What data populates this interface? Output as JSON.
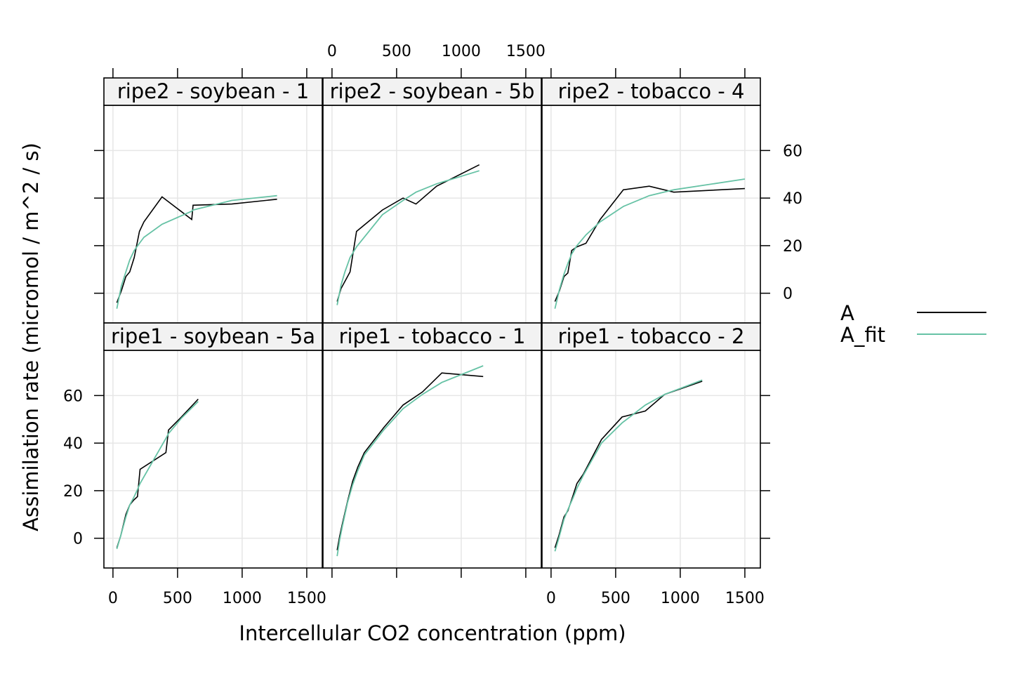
{
  "chart_data": {
    "type": "line",
    "layout": "lattice 3 columns x 2 rows",
    "xlabel": "Intercellular CO2 concentration (ppm)",
    "ylabel": "Assimilation rate (micromol / m^2 / s)",
    "xlim": [
      -70,
      1620
    ],
    "ylim": [
      -12.5,
      79
    ],
    "x_ticks": [
      0,
      500,
      1000,
      1500
    ],
    "x_tick_labels": [
      "0",
      "500",
      "1000",
      "1500"
    ],
    "y_ticks": [
      0,
      20,
      40,
      60
    ],
    "y_tick_labels": [
      "0",
      "20",
      "40",
      "60"
    ],
    "grid": true,
    "legend": {
      "position": "right",
      "entries": [
        {
          "label": "A",
          "color": "#000000"
        },
        {
          "label": "A_fit",
          "color": "#66C2A5"
        }
      ]
    },
    "panels": [
      {
        "label": "ripe2 - soybean - 1",
        "row": 0,
        "col": 0,
        "series": [
          {
            "name": "A",
            "x": [
              30,
              65,
              100,
              130,
              165,
              205,
              240,
              380,
              610,
              620,
              920,
              1270
            ],
            "y": [
              -4,
              1,
              7,
              9,
              15,
              26,
              30,
              40.5,
              31,
              37,
              37.5,
              39.5
            ]
          },
          {
            "name": "A_fit",
            "x": [
              30,
              65,
              100,
              130,
              165,
              205,
              240,
              380,
              610,
              620,
              920,
              1270
            ],
            "y": [
              -6.5,
              3,
              9,
              14,
              18,
              21,
              23.5,
              29,
              34.5,
              35,
              39,
              41
            ]
          }
        ]
      },
      {
        "label": "ripe2 - soybean - 5b",
        "row": 0,
        "col": 1,
        "series": [
          {
            "name": "A",
            "x": [
              40,
              70,
              100,
              140,
              190,
              390,
              550,
              650,
              810,
              1140
            ],
            "y": [
              -3.5,
              2,
              5,
              9,
              26,
              35,
              40,
              37.5,
              45,
              54
            ]
          },
          {
            "name": "A_fit",
            "x": [
              40,
              70,
              100,
              140,
              190,
              390,
              550,
              650,
              810,
              1140
            ],
            "y": [
              -5,
              3.5,
              9,
              15,
              19.5,
              33,
              39,
              42.5,
              46,
              51.5
            ]
          }
        ]
      },
      {
        "label": "ripe2 - tobacco - 4",
        "row": 0,
        "col": 2,
        "series": [
          {
            "name": "A",
            "x": [
              30,
              65,
              100,
              130,
              160,
              200,
              270,
              380,
              560,
              760,
              950,
              1500
            ],
            "y": [
              -3.5,
              1,
              7,
              8.5,
              18,
              19.5,
              21,
              31,
              43.5,
              45,
              42.5,
              44
            ]
          },
          {
            "name": "A_fit",
            "x": [
              30,
              65,
              100,
              130,
              160,
              200,
              270,
              380,
              560,
              760,
              950,
              1500
            ],
            "y": [
              -6.5,
              1.5,
              8,
              12.5,
              16.5,
              20,
              24.5,
              30,
              36.5,
              41,
              43.5,
              48
            ]
          }
        ]
      },
      {
        "label": "ripe1 - soybean - 5a",
        "row": 1,
        "col": 0,
        "series": [
          {
            "name": "A",
            "x": [
              30,
              60,
              100,
              130,
              160,
              190,
              210,
              410,
              430,
              530,
              660
            ],
            "y": [
              -4,
              1,
              10,
              14,
              16,
              17.5,
              29,
              36,
              45.5,
              51,
              58.5
            ]
          },
          {
            "name": "A_fit",
            "x": [
              30,
              60,
              100,
              130,
              160,
              190,
              210,
              410,
              430,
              530,
              660
            ],
            "y": [
              -4.5,
              1,
              9,
              14,
              17,
              20.5,
              23,
              42,
              44,
              50.5,
              57.5
            ]
          }
        ]
      },
      {
        "label": "ripe1 - tobacco - 1",
        "row": 1,
        "col": 1,
        "series": [
          {
            "name": "A",
            "x": [
              40,
              60,
              80,
              120,
              160,
              200,
              250,
              400,
              550,
              700,
              850,
              1170
            ],
            "y": [
              -5,
              1,
              6,
              15.5,
              24,
              30,
              36,
              46.5,
              56,
              61.5,
              69.5,
              68
            ]
          },
          {
            "name": "A_fit",
            "x": [
              40,
              60,
              80,
              120,
              160,
              200,
              250,
              400,
              550,
              700,
              850,
              1170
            ],
            "y": [
              -7.5,
              -0.5,
              5,
              15,
              22.5,
              28.5,
              35,
              45.5,
              54.5,
              60.5,
              65.5,
              72.5
            ]
          }
        ]
      },
      {
        "label": "ripe1 - tobacco - 2",
        "row": 1,
        "col": 2,
        "series": [
          {
            "name": "A",
            "x": [
              30,
              60,
              100,
              130,
              170,
              200,
              250,
              390,
              550,
              730,
              880,
              1170
            ],
            "y": [
              -4,
              1,
              9,
              11.5,
              18,
              23,
              27,
              41.5,
              51,
              53.5,
              60.5,
              66
            ]
          },
          {
            "name": "A_fit",
            "x": [
              30,
              60,
              100,
              130,
              170,
              200,
              250,
              390,
              550,
              730,
              880,
              1170
            ],
            "y": [
              -5.5,
              0,
              8,
              12,
              17,
              21,
              26.5,
              40,
              48.5,
              56,
              60.5,
              66.5
            ]
          }
        ]
      }
    ]
  }
}
